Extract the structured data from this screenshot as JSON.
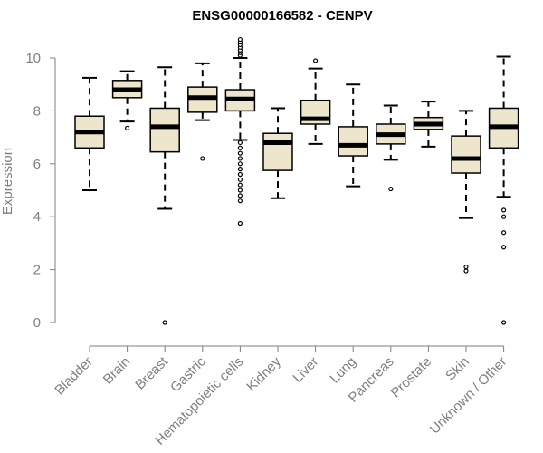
{
  "chart_data": {
    "type": "boxplot",
    "title": "ENSG00000166582 - CENPV",
    "xlabel": "",
    "ylabel": "Expression",
    "ylim": [
      0,
      10
    ],
    "yticks": [
      0,
      2,
      4,
      6,
      8,
      10
    ],
    "grid": false,
    "legend": "none",
    "box_fill": "#ede5cc",
    "box_stroke": "#000000",
    "axis_color": "#7f7f7f",
    "categories": [
      "Bladder",
      "Brain",
      "Breast",
      "Gastric",
      "Hematopoietic cells",
      "Kidney",
      "Liver",
      "Lung",
      "Pancreas",
      "Prostate",
      "Skin",
      "Unknown / Other"
    ],
    "boxes": [
      {
        "category": "Bladder",
        "whisker_low": 5.0,
        "q1": 6.6,
        "median": 7.2,
        "q3": 7.8,
        "whisker_high": 9.25,
        "outliers": []
      },
      {
        "category": "Brain",
        "whisker_low": 7.6,
        "q1": 8.5,
        "median": 8.8,
        "q3": 9.15,
        "whisker_high": 9.5,
        "outliers": [
          7.35
        ]
      },
      {
        "category": "Breast",
        "whisker_low": 4.3,
        "q1": 6.45,
        "median": 7.4,
        "q3": 8.1,
        "whisker_high": 9.65,
        "outliers": [
          0.0
        ]
      },
      {
        "category": "Gastric",
        "whisker_low": 7.65,
        "q1": 7.95,
        "median": 8.5,
        "q3": 8.9,
        "whisker_high": 9.8,
        "outliers": [
          6.2
        ]
      },
      {
        "category": "Hematopoietic cells",
        "whisker_low": 6.9,
        "q1": 8.0,
        "median": 8.45,
        "q3": 8.8,
        "whisker_high": 10.0,
        "outliers": [
          10.1,
          10.2,
          10.3,
          10.4,
          10.5,
          10.6,
          10.7,
          6.8,
          6.6,
          6.4,
          6.2,
          6.0,
          5.8,
          5.6,
          5.4,
          5.2,
          5.0,
          4.8,
          4.6,
          3.75
        ]
      },
      {
        "category": "Kidney",
        "whisker_low": 4.7,
        "q1": 5.75,
        "median": 6.8,
        "q3": 7.15,
        "whisker_high": 8.1,
        "outliers": []
      },
      {
        "category": "Liver",
        "whisker_low": 6.75,
        "q1": 7.5,
        "median": 7.7,
        "q3": 8.4,
        "whisker_high": 9.6,
        "outliers": [
          9.9
        ]
      },
      {
        "category": "Lung",
        "whisker_low": 5.15,
        "q1": 6.3,
        "median": 6.7,
        "q3": 7.4,
        "whisker_high": 9.0,
        "outliers": []
      },
      {
        "category": "Pancreas",
        "whisker_low": 6.15,
        "q1": 6.75,
        "median": 7.1,
        "q3": 7.5,
        "whisker_high": 8.2,
        "outliers": [
          5.05
        ]
      },
      {
        "category": "Prostate",
        "whisker_low": 6.65,
        "q1": 7.3,
        "median": 7.5,
        "q3": 7.75,
        "whisker_high": 8.35,
        "outliers": []
      },
      {
        "category": "Skin",
        "whisker_low": 3.95,
        "q1": 5.65,
        "median": 6.2,
        "q3": 7.05,
        "whisker_high": 8.0,
        "outliers": [
          2.1,
          1.95
        ]
      },
      {
        "category": "Unknown / Other",
        "whisker_low": 4.75,
        "q1": 6.6,
        "median": 7.4,
        "q3": 8.1,
        "whisker_high": 10.05,
        "outliers": [
          4.25,
          4.0,
          3.4,
          2.85,
          0.0
        ]
      }
    ]
  }
}
